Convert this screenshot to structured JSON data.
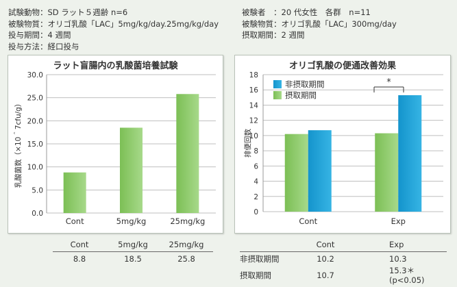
{
  "info_left": [
    "試験動物：SD ラット５週齢 n=6",
    "被験物質：オリゴ乳酸「LAC」5mg/kg/day.25mg/kg/day",
    "投与期間：4 週間",
    "投与方法：経口投与"
  ],
  "info_right": [
    "被験者　：20 代女性　各群　n=11",
    "被験物質：オリゴ乳酸「LAC」300mg/day",
    "摂取期間：2 週間"
  ],
  "colors": {
    "green": "#8cc863",
    "blue": "#1aa0d4",
    "grid": "#bfbfbf"
  },
  "chart_data": [
    {
      "type": "bar",
      "title": "ラット盲腸内の乳酸菌培養試験",
      "ylabel": "乳酸菌数（×10＾7cfu/g）",
      "categories": [
        "Cont",
        "5mg/kg",
        "25mg/kg"
      ],
      "values": [
        8.8,
        18.5,
        25.8
      ],
      "ylim": [
        0,
        30
      ],
      "yticks": [
        "0.0",
        "5.0",
        "10.0",
        "15.0",
        "20.0",
        "25.0",
        "30.0"
      ],
      "grid": true
    },
    {
      "type": "bar",
      "title": "オリゴ乳酸の便通改善効果",
      "ylabel": "排便回数",
      "categories": [
        "Cont",
        "Exp"
      ],
      "series": [
        {
          "name": "非摂取期間",
          "values": [
            10.2,
            10.3
          ]
        },
        {
          "name": "摂取期間",
          "values": [
            10.7,
            15.3
          ]
        }
      ],
      "ylim": [
        0,
        18
      ],
      "yticks": [
        "0",
        "2",
        "4",
        "6",
        "8",
        "10",
        "12",
        "14",
        "16",
        "18"
      ],
      "grid": true,
      "legend": "top-left",
      "annotation": "*"
    }
  ],
  "table_left": {
    "headers": [
      "Cont",
      "5mg/kg",
      "25mg/kg"
    ],
    "values": [
      "8.8",
      "18.5",
      "25.8"
    ]
  },
  "table_right": {
    "headers": [
      "Cont",
      "Exp"
    ],
    "rows": [
      {
        "label": "非摂取期間",
        "cont": "10.2",
        "exp": "10.3"
      },
      {
        "label": "摂取期間",
        "cont": "10.7",
        "exp": "15.3＊(p<0.05)"
      }
    ]
  }
}
